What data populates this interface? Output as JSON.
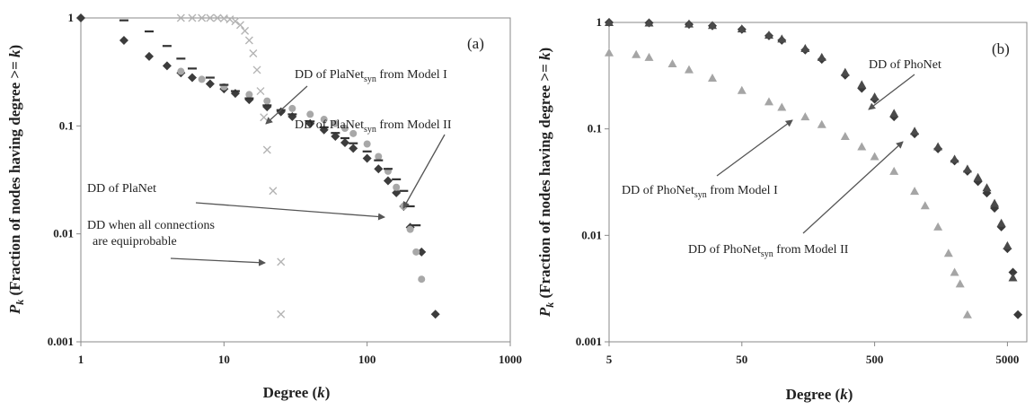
{
  "charts": [
    {
      "id": "a",
      "panel_label": "(a)",
      "ylabel": {
        "P": "P",
        "k": "k",
        "rest": " (Fraction of nodes having degree >= ",
        "k2": "k",
        "close": ")"
      },
      "xlabel": {
        "text": "Degree (",
        "k": "k",
        "close": ")"
      },
      "yticks": [
        "0.001",
        "0.01",
        "0.1",
        "1"
      ],
      "xticks": [
        "1",
        "10",
        "100",
        "1000"
      ],
      "annotations": {
        "model1": {
          "pre": "DD of PlaNet",
          "sub": "syn",
          "post": " from Model I"
        },
        "model2": {
          "pre": "DD of PlaNet",
          "sub": "syn",
          "post": " from Model II"
        },
        "planet": {
          "text": "DD of PlaNet"
        },
        "equi1": {
          "text": "DD when all connections"
        },
        "equi2": {
          "text": "are equiprobable"
        }
      }
    },
    {
      "id": "b",
      "panel_label": "(b)",
      "ylabel": {
        "P": "P",
        "k": "k",
        "rest": " (Fraction of nodes having degree >= ",
        "k2": "k",
        "close": ")"
      },
      "xlabel": {
        "text": "Degree (",
        "k": "k",
        "close": ")"
      },
      "yticks": [
        "0.001",
        "0.01",
        "0.1",
        "1"
      ],
      "xticks": [
        "5",
        "50",
        "500",
        "5000"
      ],
      "annotations": {
        "phonet": {
          "text": "DD of PhoNet"
        },
        "model1": {
          "pre": "DD of PhoNet",
          "sub": "syn",
          "post": " from Model I"
        },
        "model2": {
          "pre": "DD of PhoNet",
          "sub": "syn",
          "post": " from Model II"
        }
      }
    }
  ],
  "chart_data": [
    {
      "type": "scatter",
      "xscale": "log",
      "yscale": "log",
      "xlim": [
        1,
        1000
      ],
      "ylim": [
        0.001,
        1
      ],
      "xlabel": "Degree (k)",
      "ylabel": "Pk (Fraction of nodes having degree >= k)",
      "grid": false,
      "series": [
        {
          "name": "DD of PlaNet",
          "marker": "diamond",
          "color": "#3c3c3c",
          "x": [
            1,
            2,
            3,
            4,
            5,
            6,
            8,
            10,
            12,
            15,
            20,
            25,
            30,
            40,
            50,
            60,
            70,
            80,
            100,
            120,
            140,
            160,
            180,
            200,
            240,
            300
          ],
          "y": [
            1,
            0.62,
            0.44,
            0.36,
            0.31,
            0.28,
            0.245,
            0.22,
            0.2,
            0.175,
            0.15,
            0.135,
            0.122,
            0.105,
            0.092,
            0.08,
            0.07,
            0.062,
            0.05,
            0.04,
            0.031,
            0.024,
            0.018,
            0.0115,
            0.0068,
            0.0018
          ]
        },
        {
          "name": "DD of PlaNet_syn from Model I",
          "marker": "circle",
          "color": "#a8a8a8",
          "x": [
            5,
            7,
            10,
            15,
            20,
            30,
            40,
            50,
            60,
            70,
            80,
            100,
            120,
            140,
            160,
            180,
            200,
            220,
            240
          ],
          "y": [
            0.32,
            0.27,
            0.23,
            0.195,
            0.17,
            0.145,
            0.128,
            0.115,
            0.105,
            0.095,
            0.085,
            0.068,
            0.052,
            0.038,
            0.027,
            0.018,
            0.011,
            0.0068,
            0.0038
          ]
        },
        {
          "name": "DD of PlaNet_syn from Model II",
          "marker": "dash",
          "color": "#333333",
          "x": [
            2,
            3,
            4,
            5,
            6,
            8,
            10,
            12,
            15,
            20,
            25,
            30,
            40,
            50,
            60,
            70,
            80,
            100,
            120,
            140,
            160,
            180,
            200,
            220
          ],
          "y": [
            0.95,
            0.75,
            0.55,
            0.42,
            0.34,
            0.28,
            0.24,
            0.21,
            0.18,
            0.155,
            0.14,
            0.128,
            0.11,
            0.097,
            0.086,
            0.077,
            0.069,
            0.058,
            0.048,
            0.04,
            0.032,
            0.025,
            0.018,
            0.012
          ]
        },
        {
          "name": "DD when all connections are equiprobable",
          "marker": "x",
          "color": "#b4b4b4",
          "x": [
            5,
            6,
            7,
            8,
            9,
            10,
            11,
            12,
            13,
            14,
            15,
            16,
            17,
            18,
            19,
            20,
            22,
            25,
            25
          ],
          "y": [
            1,
            1,
            1,
            1,
            1,
            0.99,
            0.97,
            0.93,
            0.86,
            0.76,
            0.62,
            0.47,
            0.33,
            0.21,
            0.12,
            0.06,
            0.025,
            0.0055,
            0.0018
          ]
        }
      ]
    },
    {
      "type": "scatter",
      "xscale": "log",
      "yscale": "log",
      "xlim": [
        5,
        7000
      ],
      "ylim": [
        0.001,
        1
      ],
      "xlabel": "Degree (k)",
      "ylabel": "Pk (Fraction of nodes having degree >= k)",
      "grid": false,
      "series": [
        {
          "name": "DD of PhoNet",
          "marker": "diamond",
          "color": "#3a3a3a",
          "x": [
            5,
            10,
            20,
            30,
            50,
            80,
            100,
            150,
            200,
            300,
            400,
            500,
            700,
            1000,
            1500,
            2000,
            2500,
            3000,
            3500,
            4000,
            4500,
            5000,
            5500,
            6000
          ],
          "y": [
            1,
            0.99,
            0.96,
            0.93,
            0.86,
            0.75,
            0.68,
            0.55,
            0.45,
            0.32,
            0.24,
            0.19,
            0.13,
            0.09,
            0.065,
            0.05,
            0.04,
            0.032,
            0.025,
            0.018,
            0.012,
            0.0075,
            0.0045,
            0.0018
          ]
        },
        {
          "name": "DD of PhoNet_syn from Model I",
          "marker": "triangle",
          "color": "#4a4a4a",
          "x": [
            5,
            10,
            20,
            30,
            50,
            80,
            100,
            150,
            200,
            300,
            400,
            500,
            700,
            1000,
            1500,
            2000,
            2500,
            3000,
            3500,
            4000,
            4500,
            5000,
            5500
          ],
          "y": [
            1,
            0.99,
            0.97,
            0.94,
            0.87,
            0.76,
            0.7,
            0.57,
            0.47,
            0.34,
            0.26,
            0.2,
            0.14,
            0.095,
            0.068,
            0.052,
            0.042,
            0.035,
            0.028,
            0.02,
            0.013,
            0.008,
            0.004
          ]
        },
        {
          "name": "DD of PhoNet_syn from Model II",
          "marker": "triangle",
          "color": "#a5a5a5",
          "x": [
            5,
            8,
            10,
            15,
            20,
            30,
            50,
            80,
            100,
            150,
            200,
            300,
            400,
            500,
            700,
            1000,
            1200,
            1500,
            1800,
            2000,
            2200,
            2500
          ],
          "y": [
            0.52,
            0.5,
            0.47,
            0.41,
            0.36,
            0.3,
            0.23,
            0.18,
            0.16,
            0.13,
            0.11,
            0.085,
            0.068,
            0.055,
            0.04,
            0.026,
            0.019,
            0.012,
            0.0068,
            0.0045,
            0.0035,
            0.0018
          ]
        }
      ]
    }
  ]
}
